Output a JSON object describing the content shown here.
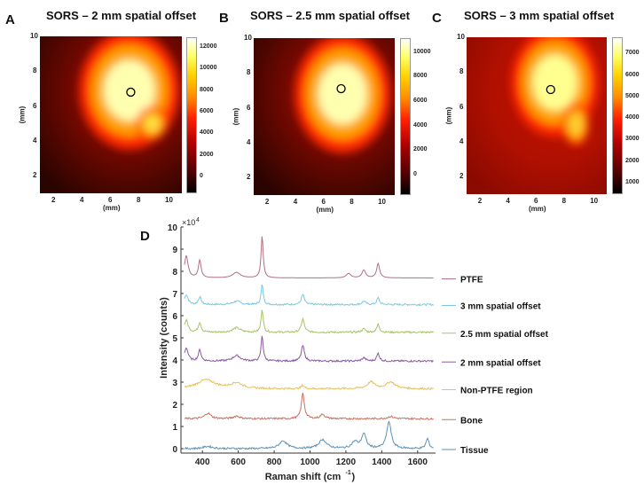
{
  "panels": [
    {
      "letter": "A",
      "title": "SORS – 2 mm spatial offset",
      "xlabel": "(mm)",
      "ylabel": "(mm)",
      "x_ticks": [
        "2",
        "4",
        "6",
        "8",
        "10"
      ],
      "y_ticks": [
        "2",
        "4",
        "6",
        "8",
        "10"
      ],
      "colorbar_ticks": [
        "12000",
        "10000",
        "8000",
        "6000",
        "4000",
        "2000",
        "0"
      ],
      "colorbar_range": [
        -1500,
        13000
      ],
      "marker_mm": [
        7.4,
        6.8
      ]
    },
    {
      "letter": "B",
      "title": "SORS – 2.5 mm spatial offset",
      "xlabel": "(mm)",
      "ylabel": "(mm)",
      "x_ticks": [
        "2",
        "4",
        "6",
        "8",
        "10"
      ],
      "y_ticks": [
        "2",
        "4",
        "6",
        "8",
        "10"
      ],
      "colorbar_ticks": [
        "10000",
        "8000",
        "6000",
        "4000",
        "2000",
        "0"
      ],
      "colorbar_range": [
        -1600,
        11200
      ],
      "marker_mm": [
        7.2,
        7.1
      ]
    },
    {
      "letter": "C",
      "title": "SORS – 3 mm spatial offset",
      "xlabel": "(mm)",
      "ylabel": "(mm)",
      "x_ticks": [
        "2",
        "4",
        "6",
        "8",
        "10"
      ],
      "y_ticks": [
        "2",
        "4",
        "6",
        "8",
        "10"
      ],
      "colorbar_ticks": [
        "7000",
        "6000",
        "5000",
        "4000",
        "3000",
        "2000",
        "1000"
      ],
      "colorbar_range": [
        500,
        7800
      ],
      "marker_mm": [
        7.0,
        7.0
      ]
    }
  ],
  "chart_data": [
    {
      "type": "heatmap",
      "title": "SORS – 2 mm spatial offset",
      "xlabel": "(mm)",
      "ylabel": "(mm)",
      "xlim": [
        1,
        11
      ],
      "ylim": [
        1,
        10
      ],
      "colormap": "hot",
      "note": "bright region centered ~x 6-9 mm, y 4.5-8.5 mm; circle marker at (7.4, 6.8)"
    },
    {
      "type": "heatmap",
      "title": "SORS – 2.5 mm spatial offset",
      "xlabel": "(mm)",
      "ylabel": "(mm)",
      "xlim": [
        1,
        11
      ],
      "ylim": [
        1,
        10
      ],
      "colormap": "hot",
      "note": "bright region centered ~x 5.5-9.5 mm, y 4.5-8.5 mm; circle marker at (7.2, 7.1)"
    },
    {
      "type": "heatmap",
      "title": "SORS – 3 mm spatial offset",
      "xlabel": "(mm)",
      "ylabel": "(mm)",
      "xlim": [
        1,
        11
      ],
      "ylim": [
        1,
        10
      ],
      "colormap": "hot",
      "note": "bright region centered ~x 6-9 mm, y 5-9 mm; circle marker at (7.0, 7.0)"
    },
    {
      "type": "line",
      "panel_letter": "D",
      "title": "",
      "xlabel": "Raman shift (cm⁻¹)",
      "xlabel_main": "Raman shift (cm",
      "xlabel_sup": "-1",
      "xlabel_close": ")",
      "ylabel": "Intensity (counts)",
      "y_multiplier": "×10",
      "y_multiplier_exp": "4",
      "xlim": [
        290,
        1700
      ],
      "ylim": [
        -0.2,
        10
      ],
      "x_ticks": [
        400,
        600,
        800,
        1000,
        1200,
        1400,
        1600
      ],
      "y_ticks": [
        0,
        1,
        2,
        3,
        4,
        5,
        6,
        7,
        8,
        9,
        10
      ],
      "legend_placement": "right",
      "series": [
        {
          "name": "PTFE",
          "color": "#b07080",
          "baseline": 7.7,
          "peaks": [
            [
              310,
              1.0,
              12
            ],
            [
              385,
              0.8,
              9
            ],
            [
              590,
              0.25,
              25
            ],
            [
              733,
              1.9,
              7
            ],
            [
              1215,
              0.2,
              15
            ],
            [
              1300,
              0.35,
              12
            ],
            [
              1380,
              0.65,
              10
            ]
          ]
        },
        {
          "name": "3 mm spatial offset",
          "color": "#7ec8de",
          "baseline": 6.5,
          "peaks": [
            [
              310,
              0.45,
              12
            ],
            [
              385,
              0.35,
              9
            ],
            [
              590,
              0.15,
              25
            ],
            [
              733,
              0.9,
              7
            ],
            [
              960,
              0.45,
              10
            ],
            [
              1300,
              0.15,
              12
            ],
            [
              1380,
              0.3,
              9
            ]
          ]
        },
        {
          "name": "2.5 mm spatial offset",
          "color": "#a6c46a",
          "baseline": 5.25,
          "peaks": [
            [
              310,
              0.55,
              12
            ],
            [
              385,
              0.45,
              9
            ],
            [
              590,
              0.2,
              25
            ],
            [
              733,
              1.05,
              7
            ],
            [
              960,
              0.6,
              10
            ],
            [
              1300,
              0.15,
              12
            ],
            [
              1380,
              0.35,
              9
            ]
          ]
        },
        {
          "name": "2 mm spatial offset",
          "color": "#8a5aa0",
          "baseline": 3.95,
          "peaks": [
            [
              310,
              0.6,
              12
            ],
            [
              385,
              0.5,
              9
            ],
            [
              590,
              0.25,
              25
            ],
            [
              733,
              1.15,
              7
            ],
            [
              960,
              0.7,
              10
            ],
            [
              1300,
              0.15,
              12
            ],
            [
              1380,
              0.35,
              9
            ]
          ]
        },
        {
          "name": "Non-PTFE region",
          "color": "#e8c060",
          "baseline": 2.7,
          "peaks": [
            [
              420,
              0.4,
              60
            ],
            [
              590,
              0.25,
              40
            ],
            [
              960,
              0.15,
              10
            ],
            [
              1340,
              0.3,
              25
            ],
            [
              1450,
              0.3,
              30
            ]
          ]
        },
        {
          "name": "Bone",
          "color": "#c87060",
          "baseline": 1.35,
          "peaks": [
            [
              430,
              0.25,
              20
            ],
            [
              590,
              0.12,
              20
            ],
            [
              960,
              1.15,
              10
            ],
            [
              1070,
              0.2,
              15
            ],
            [
              1450,
              0.1,
              20
            ]
          ]
        },
        {
          "name": "Tissue",
          "color": "#5b90b8",
          "baseline": 0.0,
          "peaks": [
            [
              430,
              0.1,
              30
            ],
            [
              850,
              0.35,
              25
            ],
            [
              1070,
              0.4,
              25
            ],
            [
              1250,
              0.3,
              20
            ],
            [
              1300,
              0.65,
              15
            ],
            [
              1440,
              1.2,
              15
            ],
            [
              1655,
              0.45,
              10
            ]
          ]
        }
      ]
    }
  ]
}
